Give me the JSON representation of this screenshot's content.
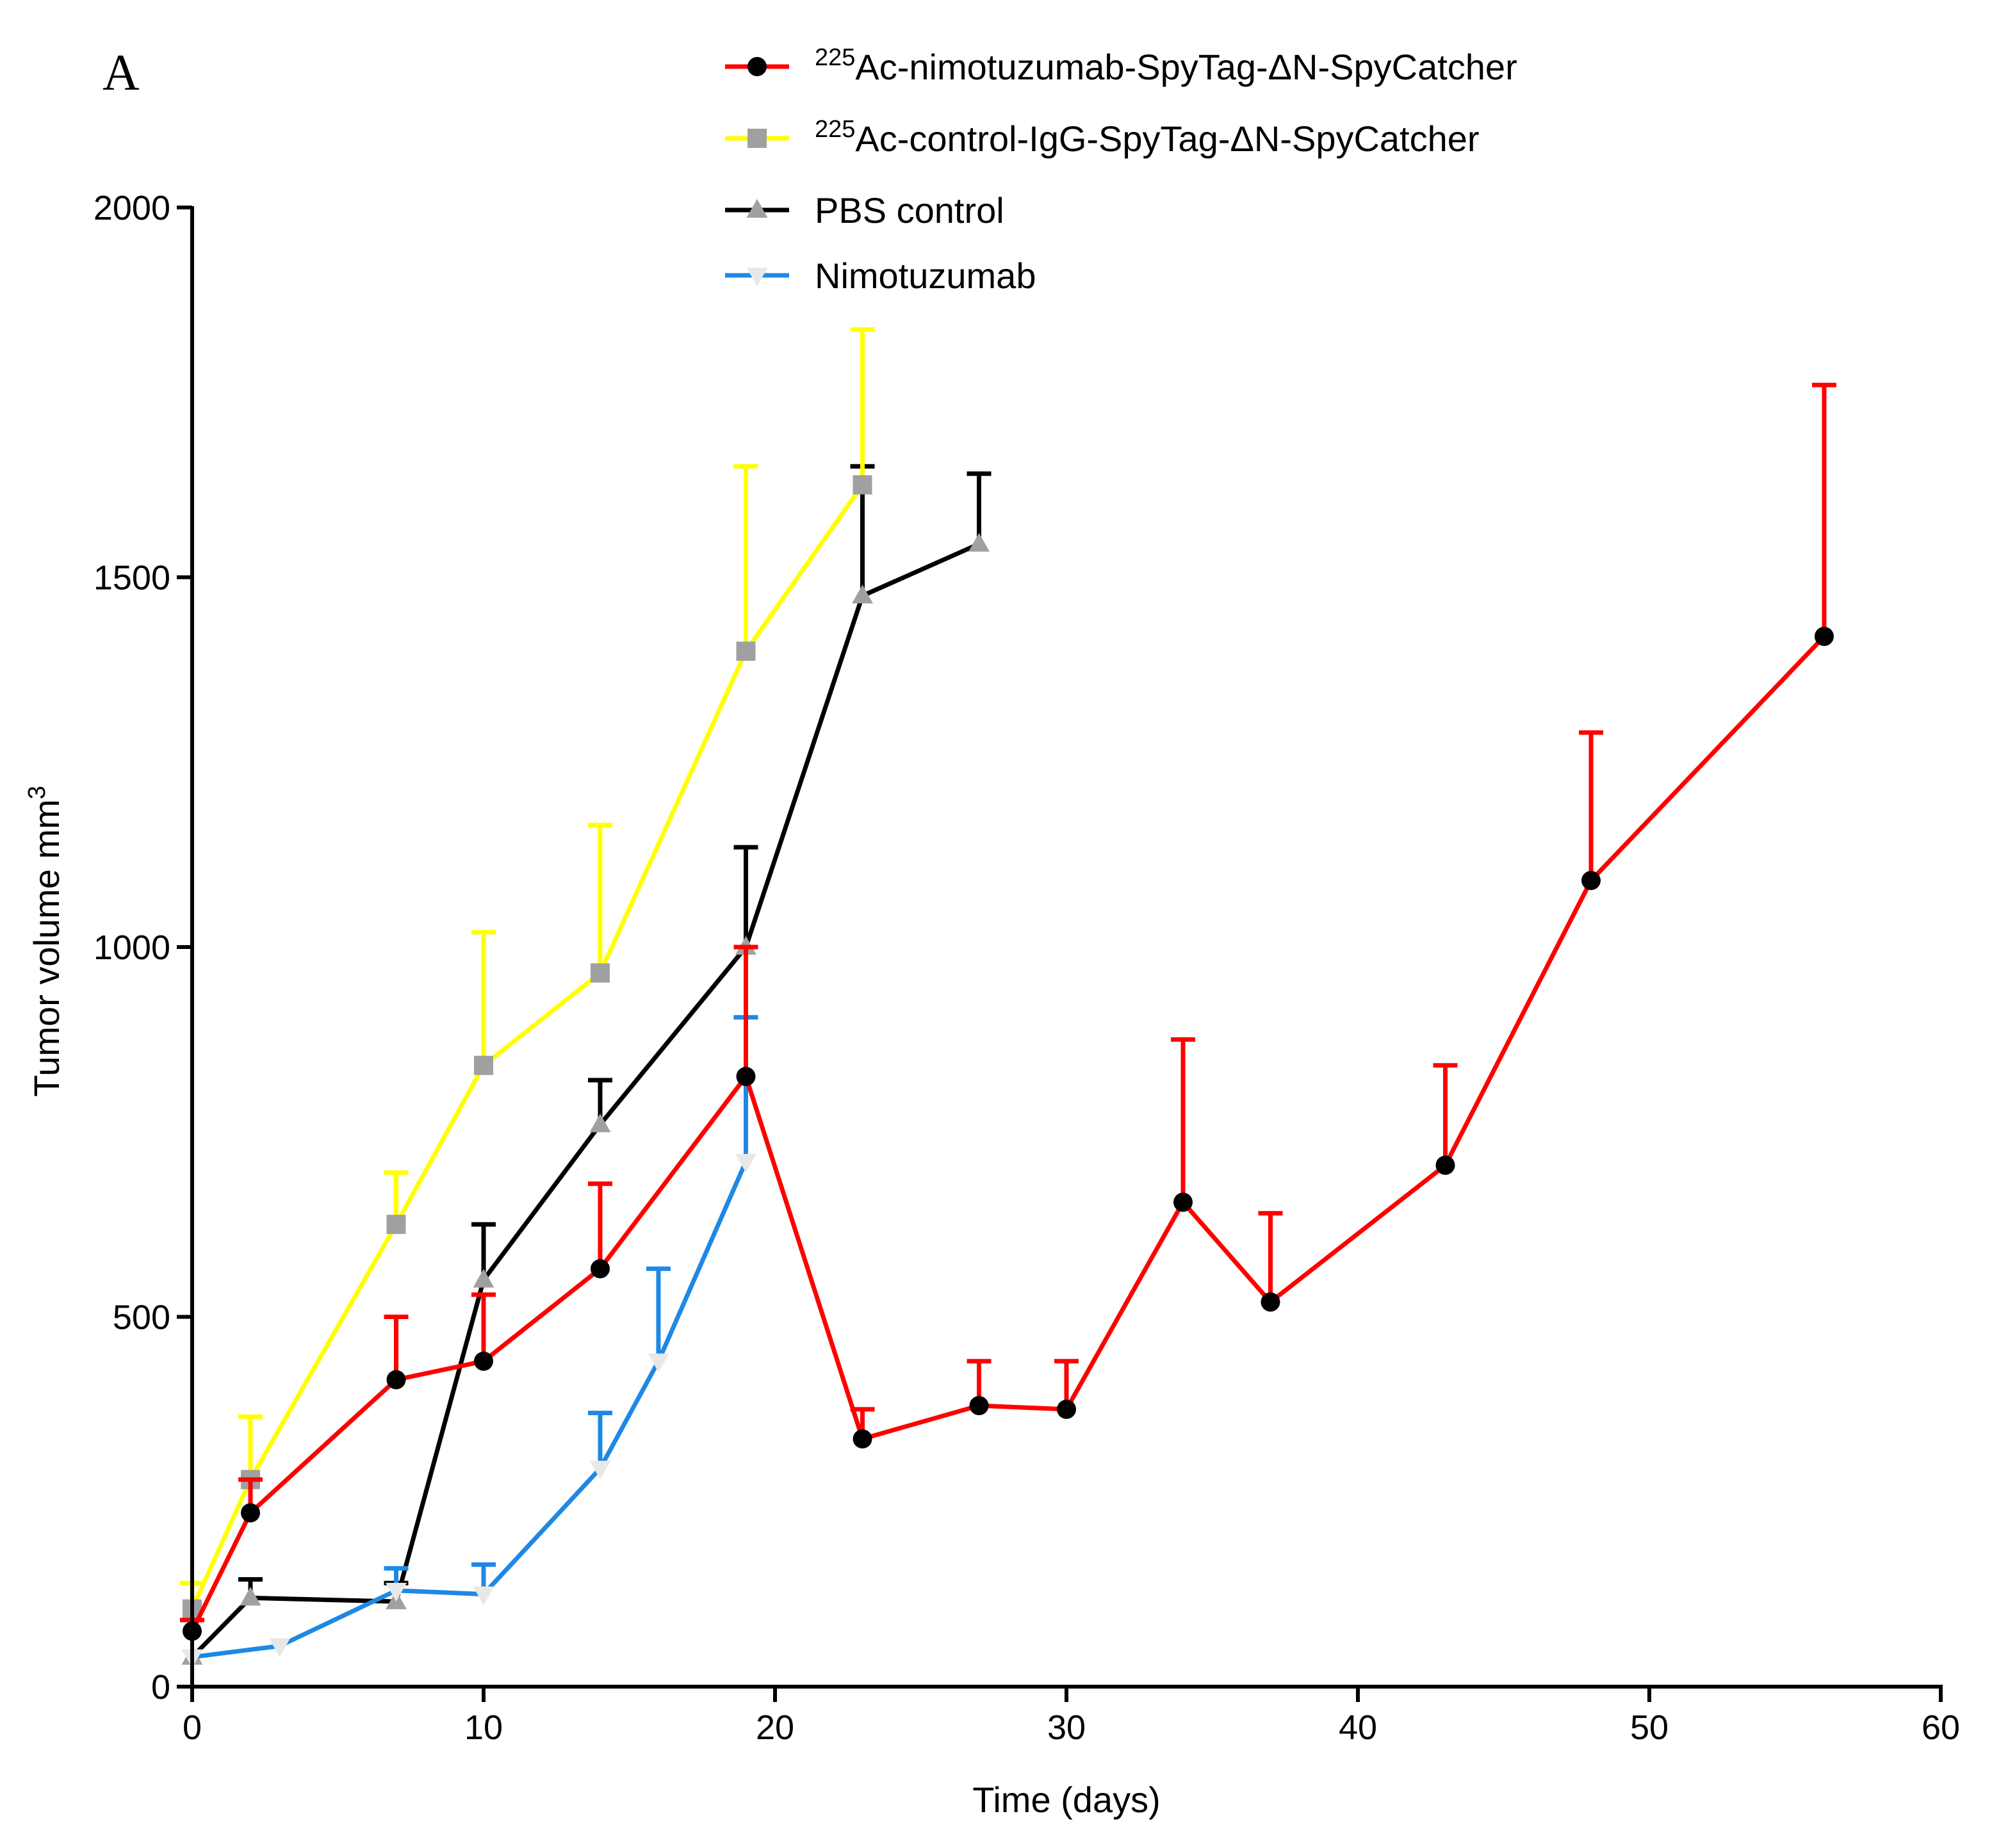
{
  "panel_label": "A",
  "chart_data": {
    "type": "line",
    "title": "",
    "xlabel": "Time (days)",
    "ylabel": {
      "text": "Tumor volume mm",
      "sup": "3"
    },
    "xlim": [
      0,
      60
    ],
    "ylim": [
      0,
      2000
    ],
    "xticks": [
      0,
      10,
      20,
      30,
      40,
      50,
      60
    ],
    "yticks": [
      0,
      500,
      1000,
      1500,
      2000
    ],
    "xtick_labels": [
      "0",
      "10",
      "20",
      "30",
      "40",
      "50",
      "60"
    ],
    "ytick_labels": [
      "0",
      "500",
      "1000",
      "1500",
      "2000"
    ],
    "grid": false,
    "legend_position": "top-center",
    "series": [
      {
        "name": "225Ac-nimotuzumab-SpyTag-ΔN-SpyCatcher",
        "legend_sup": "225",
        "legend_text": "Ac-nimotuzumab-SpyTag-ΔN-SpyCatcher",
        "color": "#ff0000",
        "marker": "circle",
        "marker_color": "#000000",
        "x": [
          0,
          2,
          7,
          10,
          14,
          19,
          23,
          27,
          30,
          34,
          37,
          43,
          48,
          56
        ],
        "y": [
          75,
          235,
          415,
          440,
          565,
          825,
          335,
          380,
          375,
          655,
          520,
          705,
          1090,
          1420
        ],
        "err_upper": [
          90,
          280,
          500,
          530,
          680,
          1000,
          375,
          440,
          440,
          875,
          640,
          840,
          1290,
          1760
        ]
      },
      {
        "name": "225Ac-control-IgG-SpyTag-ΔN-SpyCatcher",
        "legend_sup": "225",
        "legend_text": "Ac-control-IgG-SpyTag-ΔN-SpyCatcher",
        "color": "#ffff00",
        "marker": "square",
        "marker_color": "#a0a0a0",
        "x": [
          0,
          2,
          7,
          10,
          14,
          19,
          23
        ],
        "y": [
          105,
          280,
          625,
          840,
          965,
          1400,
          1625
        ],
        "err_upper": [
          140,
          365,
          695,
          1020,
          1165,
          1650,
          1835
        ]
      },
      {
        "name": "PBS control",
        "legend_sup": "",
        "legend_text": "PBS control",
        "color": "#000000",
        "marker": "triangle-up",
        "marker_color": "#a0a0a0",
        "x": [
          0,
          2,
          7,
          10,
          14,
          19,
          23,
          27
        ],
        "y": [
          40,
          120,
          115,
          550,
          760,
          1000,
          1475,
          1545
        ],
        "err_upper": [
          40,
          145,
          140,
          625,
          820,
          1135,
          1650,
          1640
        ]
      },
      {
        "name": "Nimotuzumab",
        "legend_sup": "",
        "legend_text": "Nimotuzumab",
        "color": "#1e88e5",
        "marker": "triangle-down",
        "marker_color": "#e8e8e8",
        "x": [
          0,
          3,
          7,
          10,
          14,
          16,
          19
        ],
        "y": [
          40,
          55,
          130,
          125,
          295,
          440,
          710
        ],
        "err_upper": [
          40,
          55,
          160,
          165,
          370,
          565,
          905
        ]
      }
    ]
  }
}
